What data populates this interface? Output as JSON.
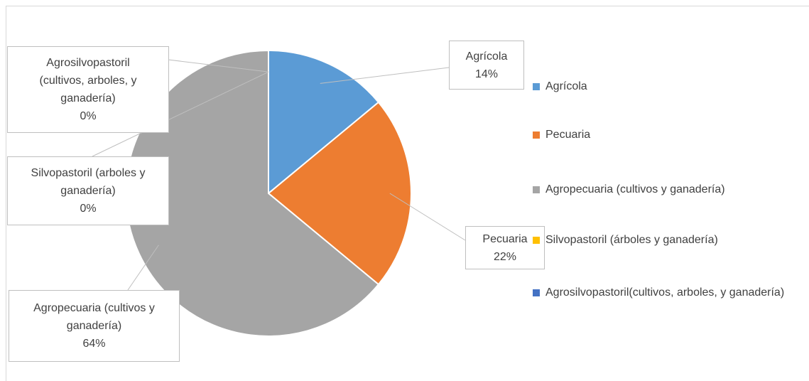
{
  "chart_data": {
    "type": "pie",
    "categories": [
      "Agrícola",
      "Pecuaria",
      "Agropecuaria (cultivos y ganadería)",
      "Silvopastoril (árboles y ganadería)",
      "Agrosilvopastoril(cultivos, arboles, y ganadería)"
    ],
    "values": [
      14,
      22,
      64,
      0,
      0
    ],
    "value_labels": [
      "14%",
      "22%",
      "64%",
      "0%",
      "0%"
    ],
    "data_label_names": [
      "Agrícola",
      "Pecuaria",
      "Agropecuaria (cultivos y ganadería)",
      "Silvopastoril (arboles y ganadería)",
      "Agrosilvopastoril (cultivos, arboles, y ganadería)"
    ],
    "colors": [
      "#5b9bd5",
      "#ed7d31",
      "#a5a5a5",
      "#ffc000",
      "#4472c4"
    ],
    "legend": "right"
  }
}
